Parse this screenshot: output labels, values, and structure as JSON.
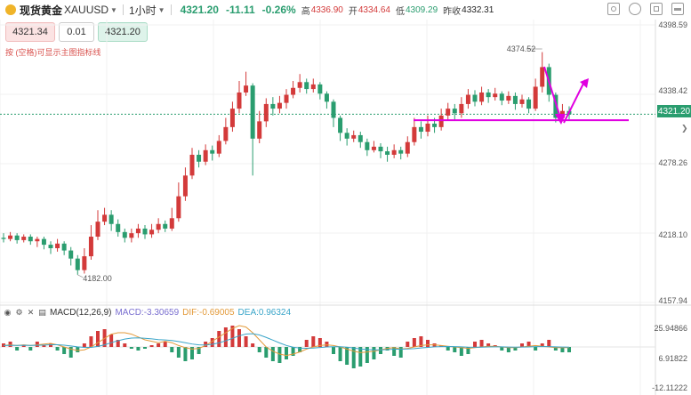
{
  "header": {
    "symbol_name": "现货黄金",
    "symbol_code": "XAUUSD",
    "timeframe": "1小时",
    "last_price": "4321.20",
    "change": "-11.11",
    "change_pct": "-0.26%",
    "high_label": "高",
    "high": "4336.90",
    "open_label": "开",
    "open": "4334.64",
    "low_label": "低",
    "low": "4309.29",
    "prev_close_label": "昨收",
    "prev_close": "4332.31"
  },
  "toolbar": {
    "icons": [
      "camera-icon",
      "settings-icon",
      "fullscreen-icon",
      "snapshot-icon"
    ]
  },
  "trade": {
    "sell_price": "4321.34",
    "quantity": "0.01",
    "buy_price": "4321.20"
  },
  "hint": "按 (空格)可显示主图指标线",
  "price_axis": {
    "labels": [
      "4398.59",
      "4338.42",
      "4278.26",
      "4218.10",
      "4157.94"
    ],
    "current_price": "4321.20"
  },
  "annotations": {
    "high_marker": "4374.52",
    "low_marker": "4182.00"
  },
  "macd": {
    "title": "MACD(12,26,9)",
    "macd_text": "MACD:-3.30659",
    "dif_text": "DIF:-0.69005",
    "dea_text": "DEA:0.96324",
    "axis_labels": [
      "25.94866",
      "6.91822",
      "-12.11222"
    ]
  },
  "colors": {
    "up": "#d33a3a",
    "down": "#2a9d6f",
    "drawing": "#e000e0",
    "dif": "#e39a3a",
    "dea": "#3aa5c9"
  },
  "chart_data": {
    "type": "candlestick",
    "price_range": [
      4157.94,
      4398.59
    ],
    "candles": [
      [
        4214,
        4213,
        4218,
        4210
      ],
      [
        4213,
        4216,
        4219,
        4211
      ],
      [
        4216,
        4212,
        4218,
        4209
      ],
      [
        4212,
        4215,
        4217,
        4210
      ],
      [
        4215,
        4211,
        4217,
        4208
      ],
      [
        4211,
        4213,
        4215,
        4206
      ],
      [
        4213,
        4208,
        4215,
        4204
      ],
      [
        4208,
        4205,
        4211,
        4200
      ],
      [
        4205,
        4209,
        4213,
        4202
      ],
      [
        4209,
        4203,
        4211,
        4199
      ],
      [
        4203,
        4196,
        4206,
        4190
      ],
      [
        4196,
        4186,
        4199,
        4182
      ],
      [
        4186,
        4198,
        4205,
        4183
      ],
      [
        4198,
        4215,
        4225,
        4195
      ],
      [
        4215,
        4228,
        4238,
        4212
      ],
      [
        4228,
        4234,
        4240,
        4225
      ],
      [
        4234,
        4226,
        4238,
        4220
      ],
      [
        4226,
        4219,
        4230,
        4215
      ],
      [
        4219,
        4214,
        4222,
        4210
      ],
      [
        4214,
        4218,
        4222,
        4210
      ],
      [
        4218,
        4222,
        4226,
        4214
      ],
      [
        4222,
        4217,
        4225,
        4213
      ],
      [
        4217,
        4221,
        4226,
        4214
      ],
      [
        4221,
        4226,
        4231,
        4218
      ],
      [
        4226,
        4222,
        4229,
        4219
      ],
      [
        4222,
        4231,
        4240,
        4220
      ],
      [
        4231,
        4250,
        4262,
        4228
      ],
      [
        4250,
        4268,
        4275,
        4246
      ],
      [
        4268,
        4286,
        4292,
        4265
      ],
      [
        4286,
        4280,
        4290,
        4275
      ],
      [
        4280,
        4290,
        4295,
        4277
      ],
      [
        4290,
        4287,
        4294,
        4281
      ],
      [
        4287,
        4298,
        4303,
        4284
      ],
      [
        4298,
        4310,
        4318,
        4295
      ],
      [
        4310,
        4326,
        4332,
        4306
      ],
      [
        4326,
        4340,
        4350,
        4322
      ],
      [
        4340,
        4346,
        4358,
        4337
      ],
      [
        4346,
        4300,
        4348,
        4268
      ],
      [
        4300,
        4315,
        4324,
        4296
      ],
      [
        4315,
        4330,
        4335,
        4310
      ],
      [
        4330,
        4326,
        4336,
        4320
      ],
      [
        4326,
        4331,
        4337,
        4322
      ],
      [
        4331,
        4338,
        4343,
        4326
      ],
      [
        4338,
        4344,
        4350,
        4335
      ],
      [
        4344,
        4349,
        4356,
        4340
      ],
      [
        4349,
        4343,
        4352,
        4339
      ],
      [
        4343,
        4347,
        4352,
        4340
      ],
      [
        4347,
        4339,
        4349,
        4334
      ],
      [
        4339,
        4332,
        4341,
        4326
      ],
      [
        4332,
        4318,
        4334,
        4310
      ],
      [
        4318,
        4305,
        4320,
        4298
      ],
      [
        4305,
        4300,
        4309,
        4294
      ],
      [
        4300,
        4303,
        4307,
        4297
      ],
      [
        4303,
        4297,
        4306,
        4292
      ],
      [
        4297,
        4290,
        4300,
        4285
      ],
      [
        4290,
        4293,
        4298,
        4288
      ],
      [
        4293,
        4289,
        4296,
        4283
      ],
      [
        4289,
        4286,
        4293,
        4280
      ],
      [
        4286,
        4290,
        4295,
        4283
      ],
      [
        4290,
        4287,
        4293,
        4282
      ],
      [
        4287,
        4297,
        4302,
        4284
      ],
      [
        4297,
        4310,
        4318,
        4294
      ],
      [
        4310,
        4306,
        4315,
        4300
      ],
      [
        4306,
        4313,
        4320,
        4302
      ],
      [
        4313,
        4310,
        4318,
        4305
      ],
      [
        4310,
        4320,
        4326,
        4307
      ],
      [
        4320,
        4326,
        4331,
        4316
      ],
      [
        4326,
        4322,
        4330,
        4316
      ],
      [
        4322,
        4330,
        4336,
        4318
      ],
      [
        4330,
        4338,
        4343,
        4326
      ],
      [
        4338,
        4332,
        4342,
        4328
      ],
      [
        4332,
        4340,
        4345,
        4329
      ],
      [
        4340,
        4336,
        4343,
        4331
      ],
      [
        4336,
        4339,
        4344,
        4333
      ],
      [
        4339,
        4333,
        4341,
        4329
      ],
      [
        4333,
        4337,
        4341,
        4330
      ],
      [
        4337,
        4330,
        4340,
        4325
      ],
      [
        4330,
        4334,
        4338,
        4327
      ],
      [
        4334,
        4326,
        4336,
        4322
      ],
      [
        4326,
        4345,
        4352,
        4324
      ],
      [
        4345,
        4362,
        4375,
        4340
      ],
      [
        4362,
        4338,
        4365,
        4332
      ],
      [
        4338,
        4318,
        4340,
        4314
      ],
      [
        4318,
        4324,
        4330,
        4315
      ],
      [
        4324,
        4321,
        4328,
        4316
      ]
    ],
    "macd_hist": [
      2,
      3,
      -2,
      1,
      -2,
      3,
      1,
      2,
      -2,
      -4,
      -6,
      -3,
      2,
      6,
      9,
      10,
      7,
      4,
      2,
      -1,
      -2,
      -1,
      1,
      2,
      3,
      -3,
      -6,
      -8,
      -7,
      -4,
      3,
      5,
      9,
      11,
      12,
      10,
      6,
      2,
      -3,
      -6,
      -8,
      -9,
      -7,
      -5,
      -3,
      4,
      6,
      5,
      3,
      -4,
      -8,
      -10,
      -12,
      -11,
      -9,
      -7,
      -4,
      -2,
      -5,
      -6,
      3,
      5,
      6,
      4,
      2,
      1,
      -2,
      -3,
      -5,
      -4,
      3,
      4,
      2,
      1,
      -2,
      -3,
      -2,
      2,
      3,
      -2,
      2,
      4,
      -2,
      -3,
      -3
    ],
    "dif": [
      2,
      3,
      2,
      3,
      2,
      3,
      4,
      5,
      3,
      0,
      -3,
      -5,
      -4,
      0,
      6,
      12,
      18,
      20,
      20,
      18,
      14,
      10,
      8,
      6,
      8,
      6,
      2,
      -1,
      -3,
      -2,
      2,
      8,
      14,
      20,
      26,
      30,
      28,
      20,
      10,
      0,
      -6,
      -10,
      -12,
      -10,
      -7,
      -3,
      0,
      2,
      3,
      2,
      0,
      -3,
      -6,
      -8,
      -7,
      -6,
      -4,
      -2,
      -1,
      -3,
      -2,
      0,
      2,
      3,
      3,
      2,
      1,
      0,
      -1,
      -2,
      -1,
      0,
      1,
      1,
      0,
      -1,
      -1,
      0,
      1,
      2,
      1,
      0,
      -1,
      -1,
      -1
    ]
  }
}
